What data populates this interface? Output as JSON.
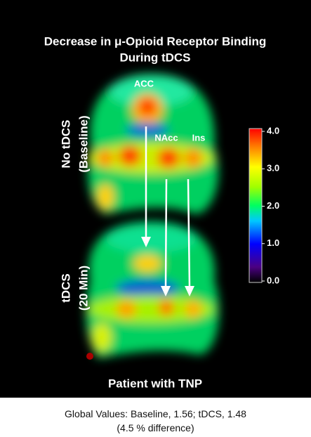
{
  "title": [
    "Decrease in μ-Opioid Receptor Binding",
    "During tDCS"
  ],
  "regions": {
    "acc": "ACC",
    "nacc": "NAcc",
    "ins": "Ins"
  },
  "rows": [
    [
      "No tDCS",
      "(Baseline)"
    ],
    [
      "tDCS",
      "(20 Min)"
    ]
  ],
  "subject": "Patient with TNP",
  "colorbar": {
    "range": [
      0,
      4
    ],
    "ticks": [
      {
        "value": 4,
        "label": "4.0"
      },
      {
        "value": 3,
        "label": "3.0"
      },
      {
        "value": 2,
        "label": "2.0"
      },
      {
        "value": 1,
        "label": "1.0"
      },
      {
        "value": 0,
        "label": "0.0"
      }
    ]
  },
  "caption": [
    "Global Values: Baseline, 1.56; tDCS, 1.48",
    "(4.5 % difference)"
  ]
}
